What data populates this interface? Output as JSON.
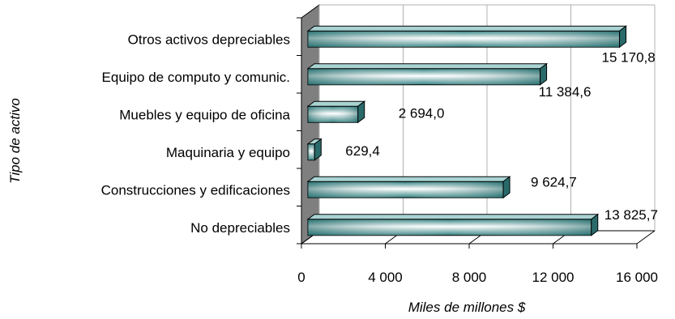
{
  "chart_data": {
    "type": "bar",
    "orientation": "horizontal",
    "style": "3d",
    "categories": [
      "Otros activos depreciables",
      "Equipo de computo y comunic.",
      "Muebles y equipo de oficina",
      "Maquinaria y equipo",
      "Construcciones y edificaciones",
      "No depreciables"
    ],
    "values": [
      15170.8,
      11384.6,
      2694.0,
      629.4,
      9624.7,
      13825.7
    ],
    "value_labels": [
      "15 170,8",
      "11 384,6",
      "2 694,0",
      "629,4",
      "9 624,7",
      "13 825,7"
    ],
    "xlabel": "Miles de millones $",
    "ylabel": "Tipo de activo",
    "xlim": [
      0,
      16000
    ],
    "xticks": [
      0,
      4000,
      8000,
      12000,
      16000
    ],
    "xtick_labels": [
      "0",
      "4 000",
      "8 000",
      "12 000",
      "16 000"
    ],
    "grid": true,
    "colors": {
      "bar_dark": "#2f7f7f",
      "bar_mid": "#8fc4c4",
      "bar_light": "#ffffff",
      "bar_side": "#2a6a6a",
      "bar_top": "#a9d3d3",
      "wall": "#7f7f7f",
      "grid": "#b0b0b0"
    }
  }
}
